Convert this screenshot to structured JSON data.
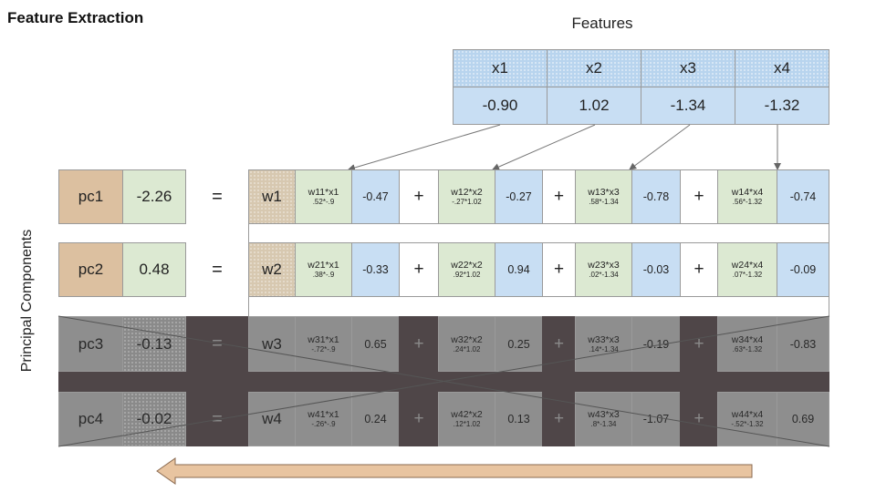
{
  "title": "Feature Extraction",
  "features_label": "Features",
  "principal_label": "Principal Components",
  "features": [
    {
      "name": "x1",
      "value": "-0.90"
    },
    {
      "name": "x2",
      "value": "1.02"
    },
    {
      "name": "x3",
      "value": "-1.34"
    },
    {
      "name": "x4",
      "value": "-1.32"
    }
  ],
  "equals": "=",
  "plus": "+",
  "rows": [
    {
      "pc": "pc1",
      "value": "-2.26",
      "w": "w1",
      "disabled": false,
      "terms": [
        {
          "label": "w11*x1",
          "calc": ".52*-.9",
          "product": "-0.47"
        },
        {
          "label": "w12*x2",
          "calc": "-.27*1.02",
          "product": "-0.27"
        },
        {
          "label": "w13*x3",
          "calc": ".58*-1.34",
          "product": "-0.78"
        },
        {
          "label": "w14*x4",
          "calc": ".56*-1.32",
          "product": "-0.74"
        }
      ]
    },
    {
      "pc": "pc2",
      "value": "0.48",
      "w": "w2",
      "disabled": false,
      "terms": [
        {
          "label": "w21*x1",
          "calc": ".38*-.9",
          "product": "-0.33"
        },
        {
          "label": "w22*x2",
          "calc": ".92*1.02",
          "product": "0.94"
        },
        {
          "label": "w23*x3",
          "calc": ".02*-1.34",
          "product": "-0.03"
        },
        {
          "label": "w24*x4",
          "calc": ".07*-1.32",
          "product": "-0.09"
        }
      ]
    },
    {
      "pc": "pc3",
      "value": "-0.13",
      "w": "w3",
      "disabled": true,
      "terms": [
        {
          "label": "w31*x1",
          "calc": "-.72*-.9",
          "product": "0.65"
        },
        {
          "label": "w32*x2",
          "calc": ".24*1.02",
          "product": "0.25"
        },
        {
          "label": "w33*x3",
          "calc": ".14*-1.34",
          "product": "-0.19"
        },
        {
          "label": "w34*x4",
          "calc": ".63*-1.32",
          "product": "-0.83"
        }
      ]
    },
    {
      "pc": "pc4",
      "value": "-0.02",
      "w": "w4",
      "disabled": true,
      "terms": [
        {
          "label": "w41*x1",
          "calc": "-.26*-.9",
          "product": "0.24"
        },
        {
          "label": "w42*x2",
          "calc": ".12*1.02",
          "product": "0.13"
        },
        {
          "label": "w43*x3",
          "calc": ".8*-1.34",
          "product": "-1.07"
        },
        {
          "label": "w44*x4",
          "calc": "-.52*-1.32",
          "product": "0.69"
        }
      ]
    }
  ],
  "colors": {
    "feature_blue": "#c8def3",
    "term_green": "#dce9d2",
    "pc_tan": "#dcc0a0",
    "disabled_grey": "#8e8e8e",
    "band_dark": "#4f4648",
    "arrow_fill": "#e8c4a0"
  }
}
